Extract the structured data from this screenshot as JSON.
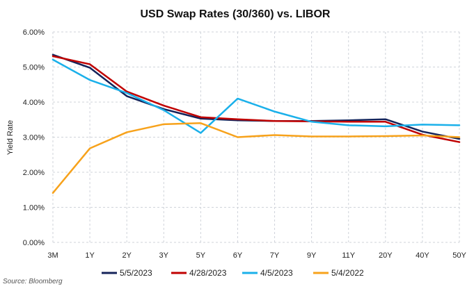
{
  "chart_data": {
    "type": "line",
    "title": "USD Swap Rates (30/360) vs. LIBOR",
    "xlabel": "",
    "ylabel": "Yield Rate",
    "ylim": [
      0,
      6
    ],
    "ytick_labels": [
      "0.00%",
      "1.00%",
      "2.00%",
      "3.00%",
      "4.00%",
      "5.00%",
      "6.00%"
    ],
    "categories": [
      "3M",
      "1Y",
      "2Y",
      "3Y",
      "5Y",
      "6Y",
      "7Y",
      "9Y",
      "11Y",
      "20Y",
      "40Y",
      "50Y"
    ],
    "grid": true,
    "legend_position": "bottom",
    "series": [
      {
        "name": "5/5/2023",
        "color": "#14235a",
        "values": [
          5.35,
          4.98,
          4.17,
          3.8,
          3.53,
          3.48,
          3.46,
          3.46,
          3.48,
          3.51,
          3.16,
          2.95
        ]
      },
      {
        "name": "4/28/2023",
        "color": "#c00000",
        "values": [
          5.31,
          5.08,
          4.3,
          3.9,
          3.57,
          3.51,
          3.46,
          3.45,
          3.44,
          3.44,
          3.07,
          2.86
        ]
      },
      {
        "name": "4/5/2023",
        "color": "#1ab0ea",
        "values": [
          5.21,
          4.63,
          4.26,
          3.77,
          3.12,
          4.1,
          3.73,
          3.44,
          3.34,
          3.31,
          3.36,
          3.34
        ]
      },
      {
        "name": "5/4/2022",
        "color": "#f7a21b",
        "values": [
          1.41,
          2.68,
          3.14,
          3.37,
          3.4,
          3.0,
          3.06,
          3.02,
          3.02,
          3.03,
          3.05,
          3.0
        ]
      }
    ],
    "source_note": "Source: Bloomberg"
  }
}
